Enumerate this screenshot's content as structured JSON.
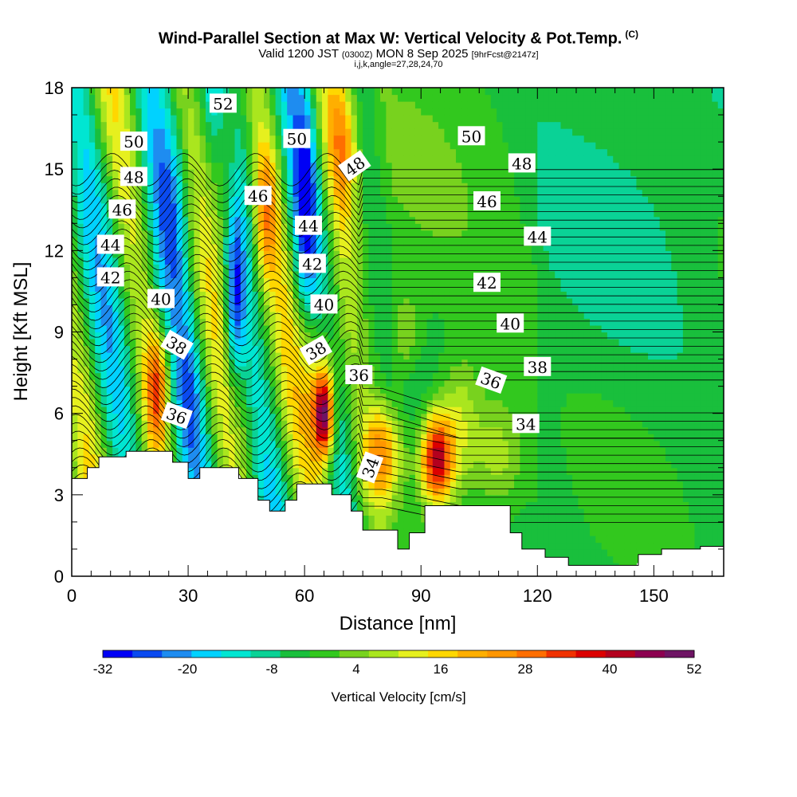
{
  "header": {
    "title": "Wind-Parallel Section at Max W: Vertical Velocity & Pot.Temp.",
    "title_mark": "(C)",
    "subtitle_parts": [
      "Valid 1200 JST ",
      "(0300Z)",
      " MON 8 Sep 2025 ",
      "[9hrFcst@2147z]"
    ],
    "subtitle2": "i,j,k,angle=27,28,24,70"
  },
  "chart_data": {
    "type": "heatmap",
    "title": "Wind-Parallel Section at Max W: Vertical Velocity & Pot.Temp.",
    "xlabel": "Distance [nm]",
    "ylabel": "Height [Kft MSL]",
    "xlim": [
      0,
      168
    ],
    "ylim": [
      0,
      18
    ],
    "x_ticks": [
      0,
      30,
      60,
      90,
      120,
      150
    ],
    "y_ticks": [
      0,
      3,
      6,
      9,
      12,
      15,
      18
    ],
    "x_tick_labels": [
      "0",
      "30",
      "60",
      "90",
      "120",
      "150"
    ],
    "y_tick_labels": [
      "0",
      "3",
      "6",
      "9",
      "12",
      "15",
      "18"
    ],
    "colorbar": {
      "label": "Vertical Velocity [cm/s]",
      "range": [
        -32,
        52
      ],
      "tick_values": [
        -32,
        -20,
        -8,
        4,
        16,
        28,
        40,
        52
      ],
      "tick_labels": [
        "-32",
        "-20",
        "-8",
        "4",
        "16",
        "28",
        "40",
        "52"
      ],
      "colors": [
        "#0000f5",
        "#0a4af0",
        "#1e8cf0",
        "#00d2ff",
        "#00e6d2",
        "#0ad296",
        "#19bf3c",
        "#32c81e",
        "#78d21e",
        "#aae61e",
        "#e6f01e",
        "#ffd700",
        "#ffaf00",
        "#ff9600",
        "#ff6e00",
        "#f03200",
        "#dc0000",
        "#b4001e",
        "#8c0050",
        "#6e1464"
      ]
    },
    "terrain_profile": [
      [
        0,
        3.6
      ],
      [
        4,
        3.6
      ],
      [
        4,
        4
      ],
      [
        7,
        4
      ],
      [
        7,
        4.4
      ],
      [
        14,
        4.4
      ],
      [
        14,
        4.6
      ],
      [
        26,
        4.6
      ],
      [
        26,
        4.2
      ],
      [
        30,
        4.2
      ],
      [
        30,
        3.6
      ],
      [
        33,
        3.6
      ],
      [
        33,
        4
      ],
      [
        43,
        4
      ],
      [
        43,
        3.6
      ],
      [
        48,
        3.6
      ],
      [
        48,
        2.8
      ],
      [
        51,
        2.8
      ],
      [
        51,
        2.4
      ],
      [
        55,
        2.4
      ],
      [
        55,
        2.8
      ],
      [
        58,
        2.8
      ],
      [
        58,
        3.4
      ],
      [
        67,
        3.4
      ],
      [
        67,
        3
      ],
      [
        72,
        3
      ],
      [
        72,
        2.4
      ],
      [
        75,
        2.4
      ],
      [
        75,
        1.7
      ],
      [
        84,
        1.7
      ],
      [
        84,
        1
      ],
      [
        87,
        1
      ],
      [
        87,
        1.6
      ],
      [
        91,
        1.6
      ],
      [
        91,
        2.6
      ],
      [
        113,
        2.6
      ],
      [
        113,
        1.6
      ],
      [
        116,
        1.6
      ],
      [
        116,
        1
      ],
      [
        122,
        1
      ],
      [
        122,
        0.7
      ],
      [
        128,
        0.7
      ],
      [
        128,
        0.4
      ],
      [
        146,
        0.4
      ],
      [
        146,
        0.8
      ],
      [
        152,
        0.8
      ],
      [
        152,
        1
      ],
      [
        162,
        1
      ],
      [
        162,
        1.1
      ],
      [
        168,
        1.1
      ]
    ],
    "isentrope_labels": [
      {
        "text": "52",
        "x": 39,
        "y": 17.4,
        "angle": 0
      },
      {
        "text": "50",
        "x": 16,
        "y": 16.0,
        "angle": 0
      },
      {
        "text": "50",
        "x": 58,
        "y": 16.1,
        "angle": 0
      },
      {
        "text": "50",
        "x": 103,
        "y": 16.2,
        "angle": 0
      },
      {
        "text": "48",
        "x": 16,
        "y": 14.7,
        "angle": 0
      },
      {
        "text": "48",
        "x": 73,
        "y": 15.1,
        "angle": -35
      },
      {
        "text": "48",
        "x": 116,
        "y": 15.2,
        "angle": 0
      },
      {
        "text": "46",
        "x": 13,
        "y": 13.5,
        "angle": 0
      },
      {
        "text": "46",
        "x": 48,
        "y": 14.0,
        "angle": 0
      },
      {
        "text": "46",
        "x": 107,
        "y": 13.8,
        "angle": 0
      },
      {
        "text": "44",
        "x": 10,
        "y": 12.2,
        "angle": 0
      },
      {
        "text": "44",
        "x": 61,
        "y": 12.9,
        "angle": 0
      },
      {
        "text": "44",
        "x": 120,
        "y": 12.5,
        "angle": 0
      },
      {
        "text": "42",
        "x": 10,
        "y": 11.0,
        "angle": 0
      },
      {
        "text": "42",
        "x": 62,
        "y": 11.5,
        "angle": 0
      },
      {
        "text": "42",
        "x": 107,
        "y": 10.8,
        "angle": 0
      },
      {
        "text": "40",
        "x": 23,
        "y": 10.2,
        "angle": 0
      },
      {
        "text": "40",
        "x": 65,
        "y": 10.0,
        "angle": 0
      },
      {
        "text": "40",
        "x": 113,
        "y": 9.3,
        "angle": 0
      },
      {
        "text": "38",
        "x": 27,
        "y": 8.5,
        "angle": 30
      },
      {
        "text": "38",
        "x": 63,
        "y": 8.3,
        "angle": -30
      },
      {
        "text": "38",
        "x": 120,
        "y": 7.7,
        "angle": 0
      },
      {
        "text": "36",
        "x": 74,
        "y": 7.4,
        "angle": 0
      },
      {
        "text": "36",
        "x": 108,
        "y": 7.2,
        "angle": 20
      },
      {
        "text": "36",
        "x": 27,
        "y": 5.9,
        "angle": 20
      },
      {
        "text": "34",
        "x": 117,
        "y": 5.6,
        "angle": 0
      },
      {
        "text": "34",
        "x": 77,
        "y": 4.0,
        "angle": -70
      }
    ]
  }
}
